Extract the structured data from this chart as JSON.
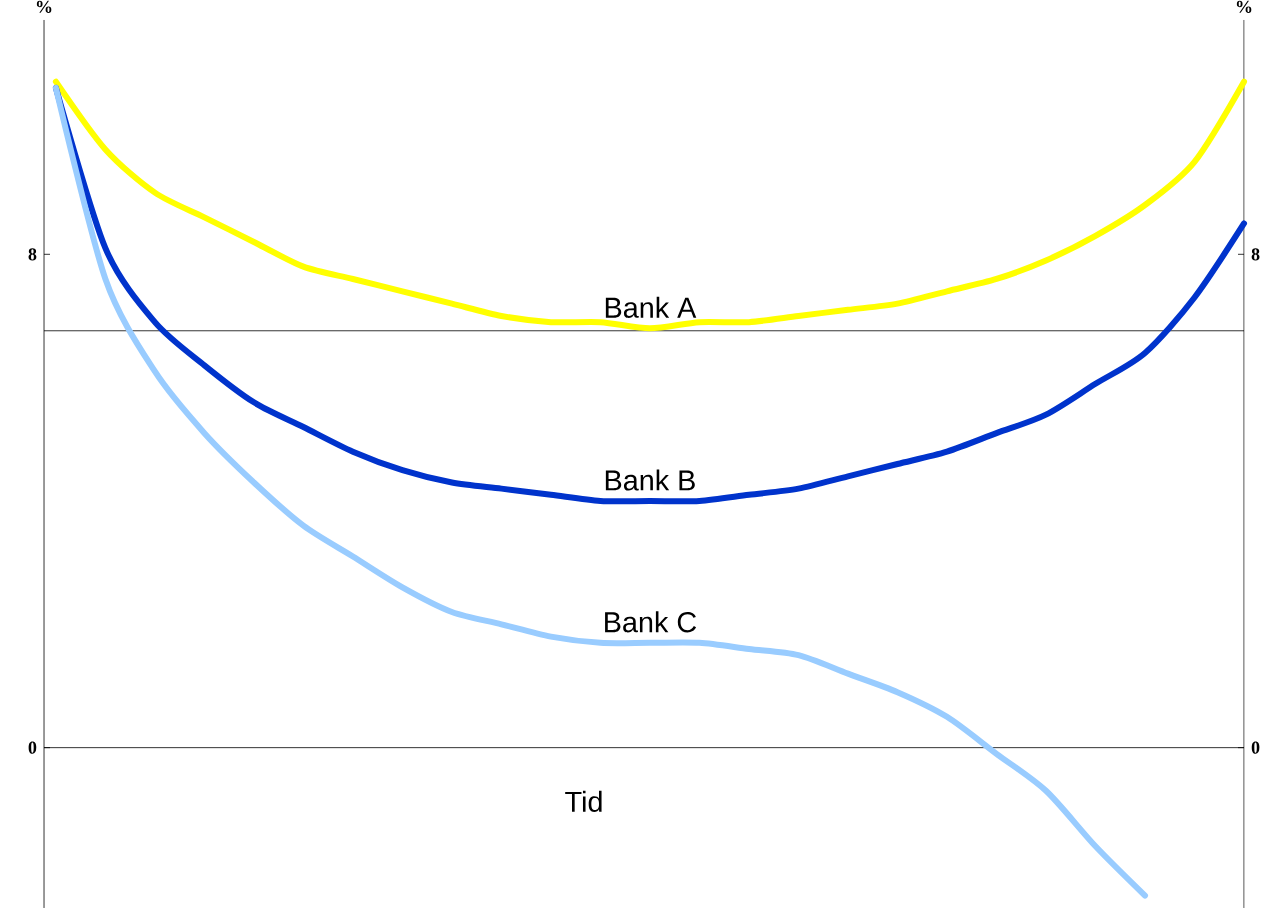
{
  "chart_data": {
    "type": "line",
    "xlabel": "Tid",
    "ylabel": "%",
    "y2label": "%",
    "categories": [
      null,
      null,
      null,
      null,
      null,
      null,
      null,
      null,
      null,
      null,
      null,
      null,
      null,
      null,
      null,
      null,
      null,
      null,
      null,
      null,
      null,
      null,
      null,
      null,
      null
    ],
    "series": [
      {
        "name": "Bank A",
        "color": "#ffff00",
        "values": [
          10.8,
          9.7,
          9.0,
          8.6,
          8.2,
          7.8,
          7.6,
          7.4,
          7.2,
          7.0,
          6.9,
          6.9,
          6.8,
          6.9,
          6.9,
          7.0,
          7.1,
          7.2,
          7.4,
          7.6,
          7.9,
          8.3,
          8.8,
          9.5,
          10.8
        ]
      },
      {
        "name": "Bank B",
        "color": "#0033cc",
        "values": [
          10.7,
          8.1,
          6.9,
          6.2,
          5.6,
          5.2,
          4.8,
          4.5,
          4.3,
          4.2,
          4.1,
          4.0,
          4.0,
          4.0,
          4.1,
          4.2,
          4.4,
          4.6,
          4.8,
          5.1,
          5.4,
          5.9,
          6.4,
          7.3,
          8.5
        ]
      },
      {
        "name": "Bank C",
        "color": "#99ccff",
        "values": [
          10.7,
          7.6,
          6.1,
          5.1,
          4.3,
          3.6,
          3.1,
          2.6,
          2.2,
          2.0,
          1.8,
          1.7,
          1.7,
          1.7,
          1.6,
          1.5,
          1.2,
          0.9,
          0.5,
          -0.1,
          -0.7,
          -1.6,
          -2.4,
          null,
          null
        ]
      }
    ],
    "ylim": [
      -2.6,
      11.8
    ],
    "yticks": [
      0,
      8
    ],
    "y2lim": [
      -2.6,
      11.8
    ],
    "y2ticks": [
      0,
      8
    ],
    "ref_lines": [
      {
        "axis": "y",
        "value": 6.76,
        "color": "#000000"
      }
    ]
  }
}
